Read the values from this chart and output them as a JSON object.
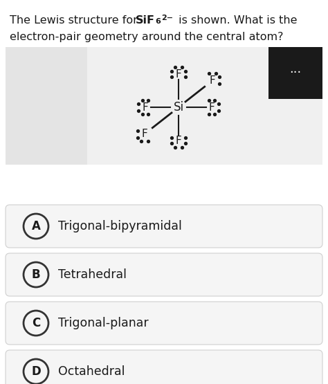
{
  "bg_color": "#ffffff",
  "text_color": "#1a1a1a",
  "dark_box_color": "#1a1a1a",
  "lewis_panel_bg": "#f0f0f0",
  "left_panel_bg": "#e8e8e8",
  "right_panel_bg": "#f0f0f0",
  "answer_bg": "#f5f5f5",
  "answer_border": "#d0d0d0",
  "options": [
    "Trigonal-bipyramidal",
    "Tetrahedral",
    "Trigonal-planar",
    "Octahedral"
  ],
  "option_letters": [
    "A",
    "B",
    "C",
    "D"
  ],
  "title_line1_plain": "The Lewis structure for ",
  "title_line1_bold": "SiF",
  "title_line1_sub": "6",
  "title_line1_sup": "2−",
  "title_line1_rest": " is shown. What is the",
  "title_line2": "electron-pair geometry around the central atom?"
}
